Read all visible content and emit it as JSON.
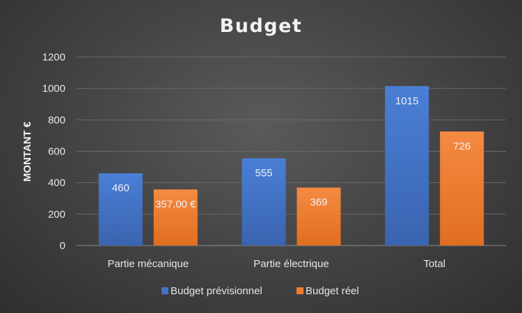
{
  "chart_data": {
    "type": "bar",
    "title": "Budget",
    "xlabel": "",
    "ylabel": "MONTANT €",
    "ylim": [
      0,
      1200
    ],
    "yticks": [
      "0",
      "200",
      "400",
      "600",
      "800",
      "1000",
      "1200"
    ],
    "grid": true,
    "legend_position": "bottom",
    "categories": [
      "Partie mécanique",
      "Partie électrique",
      "Total"
    ],
    "series": [
      {
        "name": "Budget prévisionnel",
        "color": "#4472C4",
        "values": [
          460,
          555,
          1015
        ],
        "labels": [
          "460",
          "555",
          "1015"
        ]
      },
      {
        "name": "Budget réel",
        "color": "#ED7D31",
        "values": [
          357,
          369,
          726
        ],
        "labels": [
          "357.00 €",
          "369",
          "726"
        ]
      }
    ]
  }
}
